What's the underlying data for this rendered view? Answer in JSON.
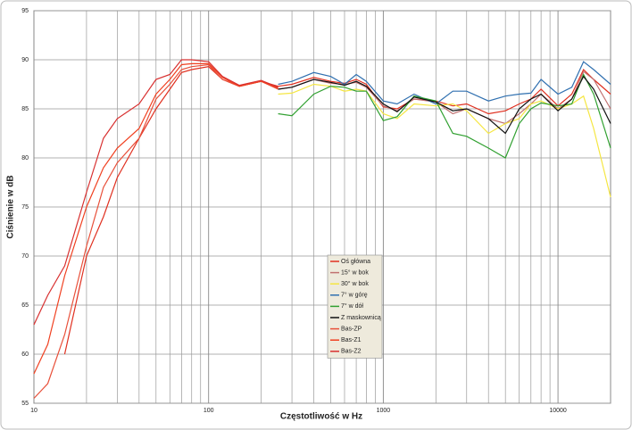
{
  "chart_data": {
    "type": "line",
    "x_label": "Częstotliwość w Hz",
    "y_label": "Ciśnienie w dB",
    "log_x": true,
    "grid": true,
    "xlim": [
      10,
      20000
    ],
    "xticks": [
      10,
      100,
      1000,
      10000
    ],
    "xminorticks": [
      20,
      30,
      40,
      50,
      60,
      70,
      80,
      90,
      200,
      300,
      400,
      500,
      600,
      700,
      800,
      900,
      2000,
      3000,
      4000,
      5000,
      6000,
      7000,
      8000,
      9000
    ],
    "ylim": [
      55,
      95
    ],
    "yticks": [
      55,
      60,
      65,
      70,
      75,
      80,
      85,
      90,
      95
    ],
    "x": [
      10,
      12,
      15,
      20,
      25,
      30,
      40,
      50,
      60,
      70,
      80,
      100,
      120,
      150,
      200,
      250,
      300,
      400,
      500,
      600,
      700,
      800,
      1000,
      1200,
      1500,
      2000,
      2500,
      3000,
      4000,
      5000,
      6000,
      7000,
      8000,
      10000,
      12000,
      14000,
      16000,
      20000
    ],
    "series": [
      {
        "name": "Oś główna",
        "color": "#e03020",
        "values": [
          null,
          null,
          60,
          70,
          74,
          78,
          82,
          85,
          87,
          88.7,
          89,
          89.3,
          88,
          87.3,
          87.8,
          87.3,
          87.5,
          88.2,
          87.8,
          87.6,
          88,
          87.5,
          85.2,
          85,
          86,
          85.8,
          85.3,
          85.5,
          84.5,
          84.8,
          85.5,
          86,
          87,
          85.3,
          86.5,
          89,
          88,
          86.5
        ]
      },
      {
        "name": "15° w bok",
        "color": "#c07070",
        "values": [
          null,
          null,
          null,
          null,
          null,
          null,
          null,
          null,
          null,
          null,
          null,
          null,
          null,
          null,
          null,
          87,
          87.2,
          88,
          87.6,
          87.5,
          87.7,
          87.2,
          85.3,
          84.8,
          86,
          85.7,
          84.5,
          85,
          84,
          83.5,
          84.5,
          85.5,
          86.5,
          85,
          86,
          88.8,
          88,
          85
        ]
      },
      {
        "name": "30° w bok",
        "color": "#f5e642",
        "values": [
          null,
          null,
          null,
          null,
          null,
          null,
          null,
          null,
          null,
          null,
          null,
          null,
          null,
          null,
          null,
          86.5,
          86.6,
          87.5,
          87.3,
          86.8,
          87,
          86.8,
          84.5,
          84,
          85.5,
          85.3,
          85.5,
          84.8,
          82.5,
          83.5,
          84,
          85.5,
          85.8,
          85,
          85.5,
          86.3,
          83,
          76
        ]
      },
      {
        "name": "7° w górę",
        "color": "#3070b0",
        "values": [
          null,
          null,
          null,
          null,
          null,
          null,
          null,
          null,
          null,
          null,
          null,
          null,
          null,
          null,
          null,
          87.5,
          87.8,
          88.7,
          88.3,
          87.5,
          88.5,
          87.8,
          85.8,
          85.5,
          86.5,
          85.5,
          86.8,
          86.8,
          85.8,
          86.3,
          86.5,
          86.6,
          88,
          86.5,
          87.2,
          89.8,
          89,
          87.5
        ]
      },
      {
        "name": "7° w dół",
        "color": "#30a030",
        "values": [
          null,
          null,
          null,
          null,
          null,
          null,
          null,
          null,
          null,
          null,
          null,
          null,
          null,
          null,
          null,
          84.5,
          84.3,
          86.5,
          87.3,
          87.2,
          86.8,
          86.8,
          83.8,
          84.2,
          86.3,
          85.8,
          82.5,
          82.2,
          81,
          80,
          83.5,
          85,
          85.6,
          85.3,
          85.5,
          88.5,
          86.5,
          81
        ]
      },
      {
        "name": "Z maskownicą",
        "color": "#111111",
        "values": [
          null,
          null,
          null,
          null,
          null,
          null,
          null,
          null,
          null,
          null,
          null,
          null,
          null,
          null,
          null,
          87,
          87.2,
          88,
          87.7,
          87.4,
          87.8,
          87.3,
          85.5,
          84.7,
          86.2,
          85.7,
          84.8,
          85,
          84,
          82.5,
          85,
          86,
          86.5,
          84.8,
          86,
          88.3,
          87,
          83.5
        ]
      },
      {
        "name": "Bas-ZP",
        "color": "#e8503a",
        "values": [
          55.5,
          57,
          62,
          71,
          77,
          79.5,
          82,
          86,
          87.5,
          89,
          89.3,
          89.5,
          88,
          87.3,
          87.8,
          87,
          null,
          null,
          null,
          null,
          null,
          null,
          null,
          null,
          null,
          null,
          null,
          null,
          null,
          null,
          null,
          null,
          null,
          null,
          null,
          null,
          null,
          null
        ]
      },
      {
        "name": "Bas-Z1",
        "color": "#f04020",
        "values": [
          58,
          61,
          68,
          75,
          79,
          81,
          83,
          86.5,
          88,
          89.5,
          89.6,
          89.6,
          88.2,
          87.3,
          87.8,
          87.1,
          null,
          null,
          null,
          null,
          null,
          null,
          null,
          null,
          null,
          null,
          null,
          null,
          null,
          null,
          null,
          null,
          null,
          null,
          null,
          null,
          null,
          null
        ]
      },
      {
        "name": "Bas-Z2",
        "color": "#d83030",
        "values": [
          63,
          66,
          69,
          76.5,
          82,
          84,
          85.5,
          88,
          88.5,
          90,
          90,
          89.8,
          88.3,
          87.4,
          87.9,
          87.2,
          null,
          null,
          null,
          null,
          null,
          null,
          null,
          null,
          null,
          null,
          null,
          null,
          null,
          null,
          null,
          null,
          null,
          null,
          null,
          null,
          null,
          null
        ]
      }
    ]
  }
}
